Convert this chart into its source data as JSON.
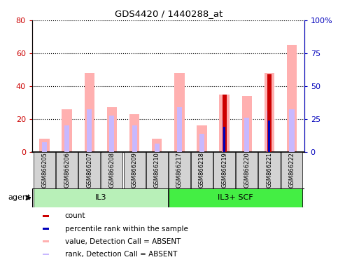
{
  "title": "GDS4420 / 1440288_at",
  "categories": [
    "GSM866205",
    "GSM866206",
    "GSM866207",
    "GSM866208",
    "GSM866209",
    "GSM866210",
    "GSM866217",
    "GSM866218",
    "GSM866219",
    "GSM866220",
    "GSM866221",
    "GSM866222"
  ],
  "ylim_left": [
    0,
    80
  ],
  "ylim_right": [
    0,
    100
  ],
  "yticks_left": [
    0,
    20,
    40,
    60,
    80
  ],
  "yticks_right": [
    0,
    25,
    50,
    75,
    100
  ],
  "yticklabels_left": [
    "0",
    "20",
    "40",
    "60",
    "80"
  ],
  "yticklabels_right": [
    "0",
    "25",
    "50",
    "75",
    "100%"
  ],
  "value_absent": [
    8,
    26,
    48,
    27,
    23,
    8,
    48,
    16,
    35,
    34,
    48,
    65
  ],
  "rank_absent": [
    6,
    16,
    26,
    22,
    16,
    5,
    27,
    11,
    19,
    21,
    25,
    26
  ],
  "count": [
    0,
    0,
    0,
    0,
    0,
    0,
    0,
    0,
    35,
    0,
    47,
    0
  ],
  "percentile_rank": [
    0,
    0,
    0,
    0,
    0,
    0,
    0,
    0,
    19,
    0,
    24,
    0
  ],
  "color_count": "#cc0000",
  "color_percentile": "#0000bb",
  "color_value_absent": "#ffb0b0",
  "color_rank_absent": "#c8b8ff",
  "group_color_il3": "#b8f0b8",
  "group_color_il3scf": "#44ee44",
  "left_axis_color": "#cc0000",
  "right_axis_color": "#0000bb",
  "il3_range": [
    0,
    5
  ],
  "il3scf_range": [
    6,
    11
  ]
}
